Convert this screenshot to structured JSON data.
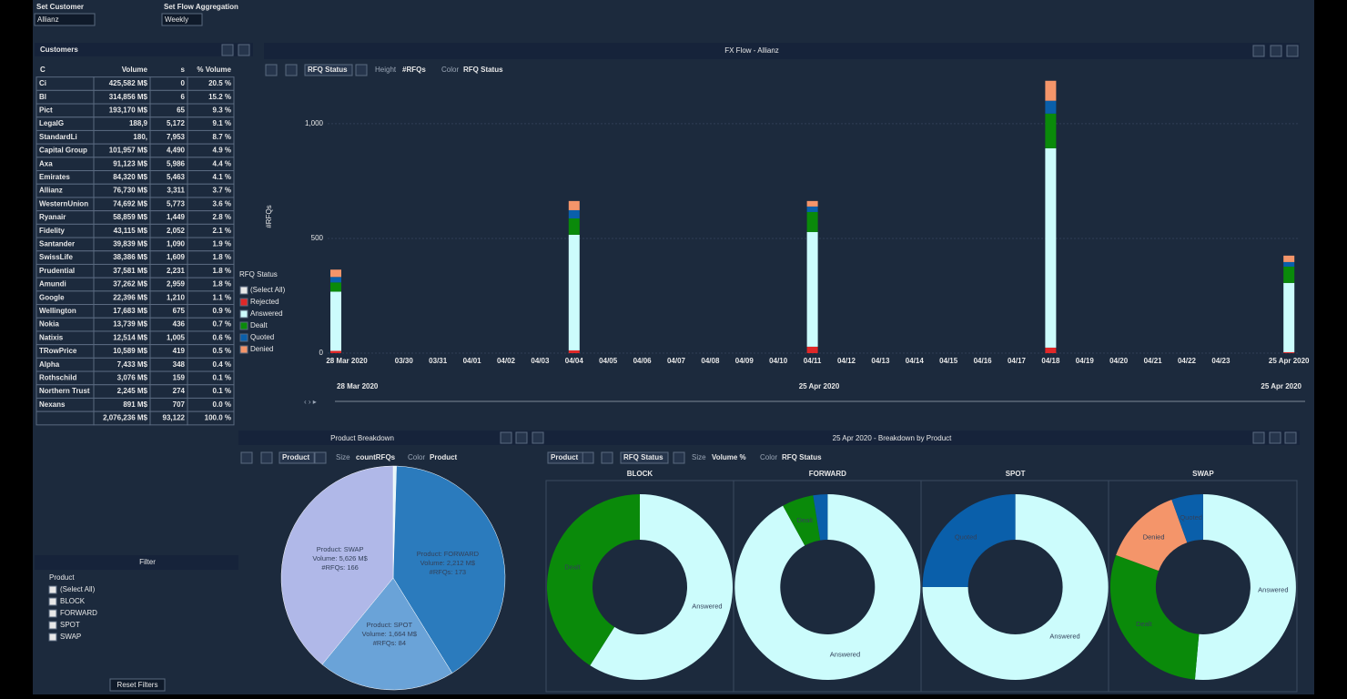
{
  "controls": {
    "customer_label": "Set Customer",
    "customer": "Allianz",
    "aggregation_label": "Set Flow Aggregation",
    "aggregation": "Weekly"
  },
  "customers": {
    "title": "Customers",
    "columns": [
      "C",
      "Volume",
      "s",
      "% Volume"
    ],
    "rows": [
      [
        "Ci",
        "425,582 M$",
        "0",
        "20.5 %"
      ],
      [
        "Bl",
        "314,856 M$",
        "6",
        "15.2 %"
      ],
      [
        "Pict",
        "193,170 M$",
        "65",
        "9.3 %"
      ],
      [
        "LegalG",
        "188,9",
        "5,172",
        "9.1 %"
      ],
      [
        "StandardLi",
        "180,",
        "7,953",
        "8.7 %"
      ],
      [
        "Capital Group",
        "101,957 M$",
        "4,490",
        "4.9 %"
      ],
      [
        "Axa",
        "91,123 M$",
        "5,986",
        "4.4 %"
      ],
      [
        "Emirates",
        "84,320 M$",
        "5,463",
        "4.1 %"
      ],
      [
        "Allianz",
        "76,730 M$",
        "3,311",
        "3.7 %"
      ],
      [
        "WesternUnion",
        "74,692 M$",
        "5,773",
        "3.6 %"
      ],
      [
        "Ryanair",
        "58,859 M$",
        "1,449",
        "2.8 %"
      ],
      [
        "Fidelity",
        "43,115 M$",
        "2,052",
        "2.1 %"
      ],
      [
        "Santander",
        "39,839 M$",
        "1,090",
        "1.9 %"
      ],
      [
        "SwissLife",
        "38,386 M$",
        "1,609",
        "1.8 %"
      ],
      [
        "Prudential",
        "37,581 M$",
        "2,231",
        "1.8 %"
      ],
      [
        "Amundi",
        "37,262 M$",
        "2,959",
        "1.8 %"
      ],
      [
        "Google",
        "22,396 M$",
        "1,210",
        "1.1 %"
      ],
      [
        "Wellington",
        "17,683 M$",
        "675",
        "0.9 %"
      ],
      [
        "Nokia",
        "13,739 M$",
        "436",
        "0.7 %"
      ],
      [
        "Natixis",
        "12,514 M$",
        "1,005",
        "0.6 %"
      ],
      [
        "TRowPrice",
        "10,589 M$",
        "419",
        "0.5 %"
      ],
      [
        "Alpha",
        "7,433 M$",
        "348",
        "0.4 %"
      ],
      [
        "Rothschild",
        "3,076 M$",
        "159",
        "0.1 %"
      ],
      [
        "Northern Trust",
        "2,245 M$",
        "274",
        "0.1 %"
      ],
      [
        "Nexans",
        "891 M$",
        "707",
        "0.0 %"
      ]
    ],
    "total": [
      "2,076,236 M$",
      "93,122",
      "100.0 %"
    ]
  },
  "filter": {
    "title": "Filter",
    "field": "Product",
    "options": [
      "(Select All)",
      "BLOCK",
      "FORWARD",
      "SPOT",
      "SWAP"
    ],
    "reset": "Reset Filters"
  },
  "chart_data": [
    {
      "type": "bar",
      "stacked": true,
      "title": "FX Flow - Allianz",
      "toolbar": [
        "RFQ Status",
        "Height",
        "#RFQs",
        "Color",
        "RFQ Status"
      ],
      "ylabel": "#RFQs",
      "categories": [
        "28 Mar 2020",
        null,
        "03/30",
        "03/31",
        "04/01",
        "04/02",
        "04/03",
        "04/04",
        "04/05",
        "04/06",
        "04/07",
        "04/08",
        "04/09",
        "04/10",
        "04/11",
        "04/12",
        "04/13",
        "04/14",
        "04/15",
        "04/16",
        "04/17",
        "04/18",
        "04/19",
        "04/20",
        "04/21",
        "04/22",
        "04/23",
        null,
        "25 Apr 2020"
      ],
      "series": [
        {
          "name": "Rejected",
          "color": "#e02828",
          "values": [
            10,
            null,
            null,
            null,
            null,
            null,
            null,
            12,
            null,
            null,
            null,
            null,
            null,
            null,
            28,
            null,
            null,
            null,
            null,
            null,
            null,
            24,
            null,
            null,
            null,
            null,
            null,
            null,
            4
          ]
        },
        {
          "name": "Answered",
          "color": "#ccfcfc",
          "values": [
            258,
            null,
            null,
            null,
            null,
            null,
            null,
            504,
            null,
            null,
            null,
            null,
            null,
            null,
            500,
            null,
            null,
            null,
            null,
            null,
            null,
            869,
            null,
            null,
            null,
            null,
            null,
            null,
            302
          ]
        },
        {
          "name": "Dealt",
          "color": "#0a8a0a",
          "values": [
            40,
            null,
            null,
            null,
            null,
            null,
            null,
            71,
            null,
            null,
            null,
            null,
            null,
            null,
            87,
            null,
            null,
            null,
            null,
            null,
            null,
            151,
            null,
            null,
            null,
            null,
            null,
            null,
            71
          ]
        },
        {
          "name": "Quoted",
          "color": "#0a5faa",
          "values": [
            24,
            null,
            null,
            null,
            null,
            null,
            null,
            36,
            null,
            null,
            null,
            null,
            null,
            null,
            24,
            null,
            null,
            null,
            null,
            null,
            null,
            56,
            null,
            null,
            null,
            null,
            null,
            null,
            20
          ]
        },
        {
          "name": "Denied",
          "color": "#f4956a",
          "values": [
            32,
            null,
            null,
            null,
            null,
            null,
            null,
            40,
            null,
            null,
            null,
            null,
            null,
            null,
            24,
            null,
            null,
            null,
            null,
            null,
            null,
            87,
            null,
            null,
            null,
            null,
            null,
            null,
            28
          ]
        }
      ],
      "ylim": [
        0,
        1190
      ],
      "yticks": [
        0,
        500,
        {
          "value": 1000,
          "label": "1,000"
        }
      ],
      "grid": true,
      "legend_title": "RFQ Status",
      "legend_select_all": "(Select All)",
      "range_labels": [
        "28 Mar 2020",
        "25 Apr 2020",
        "25 Apr 2020"
      ]
    },
    {
      "type": "pie",
      "title": "Product Breakdown",
      "toolbar": [
        "Product",
        "Size",
        "countRFQs",
        "Color",
        "Product"
      ],
      "categories": [
        "BLOCK",
        "FORWARD",
        "SPOT",
        "SWAP"
      ],
      "values": [
        2,
        173,
        84,
        166
      ],
      "colors": [
        "#e6f6f8",
        "#2b7bbd",
        "#6aa3d8",
        "#b0b8e8"
      ],
      "product_labels": [
        null,
        "Product: FORWARD",
        "Product: SPOT",
        "Product: SWAP"
      ],
      "volume_labels": [
        null,
        "Volume: 2,212 M$",
        "Volume: 1,664 M$",
        "Volume: 5,626 M$"
      ],
      "value_labels": [
        null,
        "#RFQs: 173",
        "#RFQs: 84",
        "#RFQs: 166"
      ]
    },
    {
      "type": "donut",
      "title": "25 Apr 2020 - Breakdown by Product",
      "toolbar": [
        "Product",
        "RFQ Status",
        "Size",
        "Volume %",
        "Color",
        "RFQ Status"
      ],
      "categories": [
        "BLOCK",
        "FORWARD",
        "SPOT",
        "SWAP"
      ],
      "series": [
        {
          "name": "Answered",
          "color": "#ccfcfc",
          "values": [
            59,
            92,
            75,
            51.4
          ]
        },
        {
          "name": "Dealt",
          "color": "#0a8a0a",
          "values": [
            41,
            5.5,
            null,
            29.2
          ]
        },
        {
          "name": "Denied",
          "color": "#f4956a",
          "values": [
            null,
            null,
            null,
            13.9
          ]
        },
        {
          "name": "Quoted",
          "color": "#0a5faa",
          "values": [
            null,
            2.5,
            25,
            5.5
          ]
        }
      ]
    }
  ]
}
